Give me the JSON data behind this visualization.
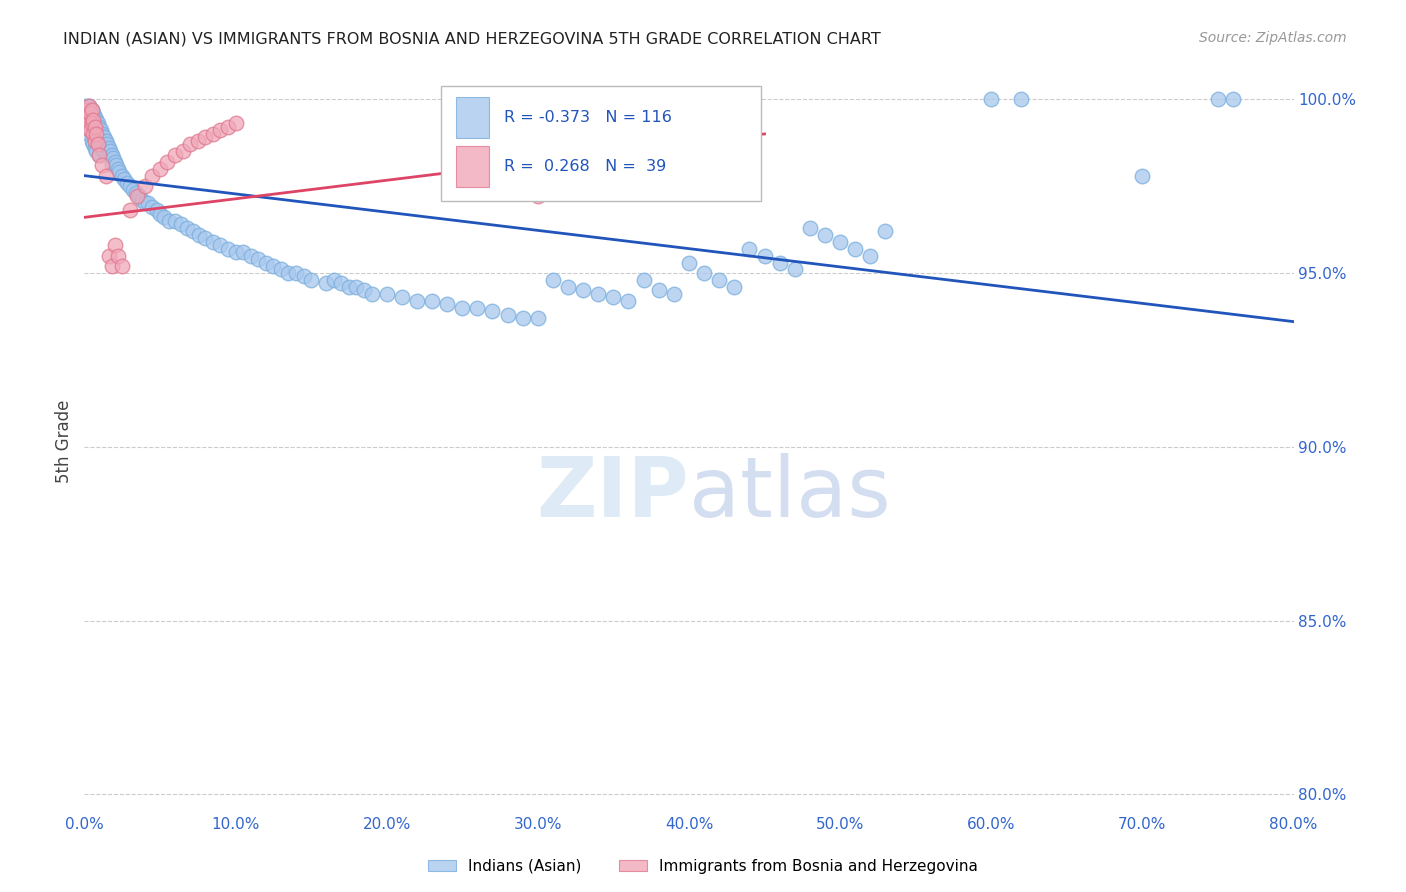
{
  "title": "INDIAN (ASIAN) VS IMMIGRANTS FROM BOSNIA AND HERZEGOVINA 5TH GRADE CORRELATION CHART",
  "source": "Source: ZipAtlas.com",
  "ylabel": "5th Grade",
  "xlim": [
    0.0,
    0.8
  ],
  "ylim": [
    0.795,
    1.008
  ],
  "x_tick_vals": [
    0.0,
    0.1,
    0.2,
    0.3,
    0.4,
    0.5,
    0.6,
    0.7,
    0.8
  ],
  "x_tick_labels": [
    "0.0%",
    "10.0%",
    "20.0%",
    "30.0%",
    "40.0%",
    "50.0%",
    "60.0%",
    "70.0%",
    "80.0%"
  ],
  "y_tick_vals": [
    0.8,
    0.85,
    0.9,
    0.95,
    1.0
  ],
  "y_tick_labels": [
    "80.0%",
    "85.0%",
    "90.0%",
    "95.0%",
    "100.0%"
  ],
  "blue_color": "#a8c8ee",
  "blue_edge_color": "#7aaedd",
  "pink_color": "#f0a8b8",
  "pink_edge_color": "#e07890",
  "blue_line_color": "#2255bb",
  "pink_line_color": "#dd4466",
  "legend_text_color": "#2255bb",
  "watermark_zip_color": "#c8dff0",
  "watermark_atlas_color": "#b8c8e8",
  "blue_line_x": [
    0.0,
    0.8
  ],
  "blue_line_y": [
    0.978,
    0.936
  ],
  "pink_line_x": [
    0.0,
    0.45
  ],
  "pink_line_y": [
    0.966,
    0.99
  ],
  "blue_scatter": [
    [
      0.001,
      0.998
    ],
    [
      0.002,
      0.996
    ],
    [
      0.002,
      0.993
    ],
    [
      0.003,
      0.998
    ],
    [
      0.003,
      0.995
    ],
    [
      0.003,
      0.99
    ],
    [
      0.004,
      0.997
    ],
    [
      0.004,
      0.994
    ],
    [
      0.004,
      0.991
    ],
    [
      0.005,
      0.997
    ],
    [
      0.005,
      0.993
    ],
    [
      0.005,
      0.988
    ],
    [
      0.006,
      0.996
    ],
    [
      0.006,
      0.992
    ],
    [
      0.006,
      0.987
    ],
    [
      0.007,
      0.995
    ],
    [
      0.007,
      0.991
    ],
    [
      0.007,
      0.986
    ],
    [
      0.008,
      0.994
    ],
    [
      0.008,
      0.99
    ],
    [
      0.008,
      0.985
    ],
    [
      0.009,
      0.993
    ],
    [
      0.009,
      0.989
    ],
    [
      0.01,
      0.992
    ],
    [
      0.01,
      0.988
    ],
    [
      0.01,
      0.984
    ],
    [
      0.011,
      0.991
    ],
    [
      0.011,
      0.987
    ],
    [
      0.012,
      0.99
    ],
    [
      0.012,
      0.986
    ],
    [
      0.013,
      0.989
    ],
    [
      0.013,
      0.985
    ],
    [
      0.014,
      0.988
    ],
    [
      0.015,
      0.987
    ],
    [
      0.015,
      0.984
    ],
    [
      0.016,
      0.986
    ],
    [
      0.017,
      0.985
    ],
    [
      0.018,
      0.984
    ],
    [
      0.018,
      0.981
    ],
    [
      0.019,
      0.983
    ],
    [
      0.02,
      0.982
    ],
    [
      0.021,
      0.981
    ],
    [
      0.022,
      0.98
    ],
    [
      0.023,
      0.979
    ],
    [
      0.025,
      0.978
    ],
    [
      0.026,
      0.977
    ],
    [
      0.028,
      0.976
    ],
    [
      0.03,
      0.975
    ],
    [
      0.032,
      0.974
    ],
    [
      0.034,
      0.973
    ],
    [
      0.036,
      0.972
    ],
    [
      0.038,
      0.971
    ],
    [
      0.04,
      0.97
    ],
    [
      0.042,
      0.97
    ],
    [
      0.045,
      0.969
    ],
    [
      0.048,
      0.968
    ],
    [
      0.05,
      0.967
    ],
    [
      0.053,
      0.966
    ],
    [
      0.056,
      0.965
    ],
    [
      0.06,
      0.965
    ],
    [
      0.064,
      0.964
    ],
    [
      0.068,
      0.963
    ],
    [
      0.072,
      0.962
    ],
    [
      0.076,
      0.961
    ],
    [
      0.08,
      0.96
    ],
    [
      0.085,
      0.959
    ],
    [
      0.09,
      0.958
    ],
    [
      0.095,
      0.957
    ],
    [
      0.1,
      0.956
    ],
    [
      0.105,
      0.956
    ],
    [
      0.11,
      0.955
    ],
    [
      0.115,
      0.954
    ],
    [
      0.12,
      0.953
    ],
    [
      0.125,
      0.952
    ],
    [
      0.13,
      0.951
    ],
    [
      0.135,
      0.95
    ],
    [
      0.14,
      0.95
    ],
    [
      0.145,
      0.949
    ],
    [
      0.15,
      0.948
    ],
    [
      0.16,
      0.947
    ],
    [
      0.165,
      0.948
    ],
    [
      0.17,
      0.947
    ],
    [
      0.175,
      0.946
    ],
    [
      0.18,
      0.946
    ],
    [
      0.185,
      0.945
    ],
    [
      0.19,
      0.944
    ],
    [
      0.2,
      0.944
    ],
    [
      0.21,
      0.943
    ],
    [
      0.22,
      0.942
    ],
    [
      0.23,
      0.942
    ],
    [
      0.24,
      0.941
    ],
    [
      0.25,
      0.94
    ],
    [
      0.26,
      0.94
    ],
    [
      0.27,
      0.939
    ],
    [
      0.28,
      0.938
    ],
    [
      0.29,
      0.937
    ],
    [
      0.3,
      0.937
    ],
    [
      0.31,
      0.948
    ],
    [
      0.32,
      0.946
    ],
    [
      0.33,
      0.945
    ],
    [
      0.34,
      0.944
    ],
    [
      0.35,
      0.943
    ],
    [
      0.36,
      0.942
    ],
    [
      0.37,
      0.948
    ],
    [
      0.38,
      0.945
    ],
    [
      0.39,
      0.944
    ],
    [
      0.4,
      0.953
    ],
    [
      0.41,
      0.95
    ],
    [
      0.42,
      0.948
    ],
    [
      0.43,
      0.946
    ],
    [
      0.44,
      0.957
    ],
    [
      0.45,
      0.955
    ],
    [
      0.46,
      0.953
    ],
    [
      0.47,
      0.951
    ],
    [
      0.48,
      0.963
    ],
    [
      0.49,
      0.961
    ],
    [
      0.5,
      0.959
    ],
    [
      0.51,
      0.957
    ],
    [
      0.52,
      0.955
    ],
    [
      0.53,
      0.962
    ],
    [
      0.6,
      1.0
    ],
    [
      0.62,
      1.0
    ],
    [
      0.7,
      0.978
    ],
    [
      0.75,
      1.0
    ],
    [
      0.76,
      1.0
    ]
  ],
  "pink_scatter": [
    [
      0.001,
      0.997
    ],
    [
      0.002,
      0.995
    ],
    [
      0.002,
      0.992
    ],
    [
      0.003,
      0.998
    ],
    [
      0.003,
      0.993
    ],
    [
      0.004,
      0.996
    ],
    [
      0.004,
      0.991
    ],
    [
      0.005,
      0.997
    ],
    [
      0.005,
      0.993
    ],
    [
      0.006,
      0.994
    ],
    [
      0.006,
      0.99
    ],
    [
      0.007,
      0.992
    ],
    [
      0.007,
      0.988
    ],
    [
      0.008,
      0.99
    ],
    [
      0.009,
      0.987
    ],
    [
      0.01,
      0.984
    ],
    [
      0.012,
      0.981
    ],
    [
      0.014,
      0.978
    ],
    [
      0.016,
      0.955
    ],
    [
      0.018,
      0.952
    ],
    [
      0.02,
      0.958
    ],
    [
      0.022,
      0.955
    ],
    [
      0.025,
      0.952
    ],
    [
      0.03,
      0.968
    ],
    [
      0.035,
      0.972
    ],
    [
      0.04,
      0.975
    ],
    [
      0.045,
      0.978
    ],
    [
      0.05,
      0.98
    ],
    [
      0.055,
      0.982
    ],
    [
      0.06,
      0.984
    ],
    [
      0.065,
      0.985
    ],
    [
      0.07,
      0.987
    ],
    [
      0.075,
      0.988
    ],
    [
      0.08,
      0.989
    ],
    [
      0.085,
      0.99
    ],
    [
      0.09,
      0.991
    ],
    [
      0.095,
      0.992
    ],
    [
      0.1,
      0.993
    ],
    [
      0.3,
      0.972
    ]
  ]
}
